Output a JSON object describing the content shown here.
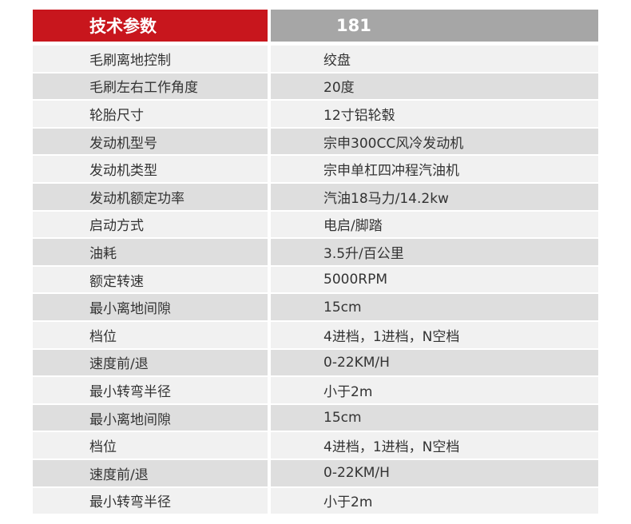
{
  "table": {
    "header": [
      "技术参数",
      "181"
    ],
    "rows": [
      [
        "毛刷离地控制",
        "绞盘"
      ],
      [
        "毛刷左右工作角度",
        "20度"
      ],
      [
        "轮胎尺寸",
        "12寸铝轮毂"
      ],
      [
        "发动机型号",
        "宗申300CC风冷发动机"
      ],
      [
        "发动机类型",
        "宗申单杠四冲程汽油机"
      ],
      [
        "发动机额定功率",
        "汽油18马力/14.2kw"
      ],
      [
        "启动方式",
        "电启/脚踏"
      ],
      [
        "油耗",
        "3.5升/百公里"
      ],
      [
        "额定转速",
        "5000RPM"
      ],
      [
        "最小离地间隙",
        "15cm"
      ],
      [
        "档位",
        "4进档，1进档，N空档"
      ],
      [
        "速度前/退",
        "0-22KM/H"
      ],
      [
        "最小转弯半径",
        "小于2m"
      ],
      [
        "最小离地间隙",
        "15cm"
      ],
      [
        "档位",
        "4进档，1进档，N空档"
      ],
      [
        "速度前/退",
        "0-22KM/H"
      ],
      [
        "最小转弯半径",
        "小于2m"
      ]
    ]
  }
}
